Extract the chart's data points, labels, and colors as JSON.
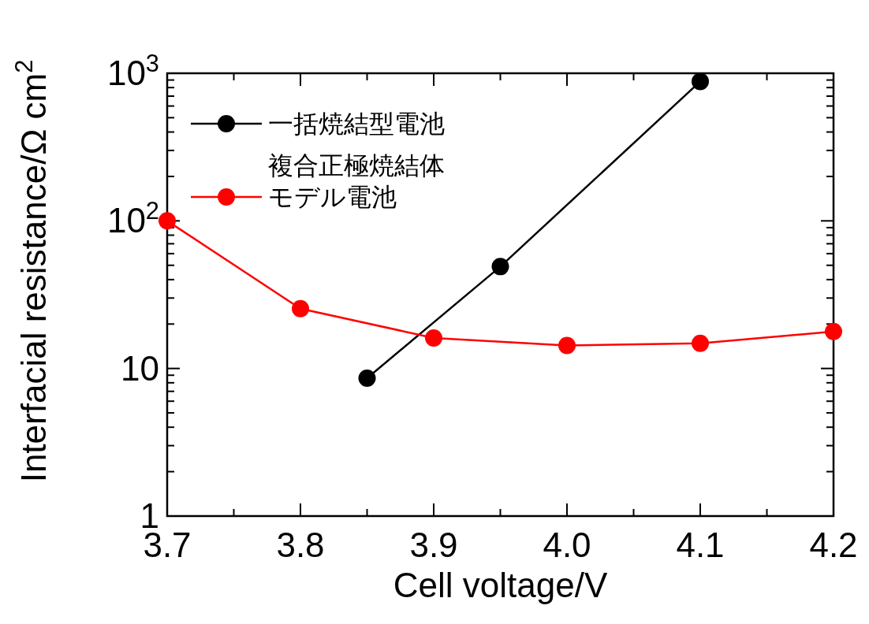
{
  "chart_data": {
    "type": "line",
    "xlabel": "Cell voltage/V",
    "ylabel": "Interfacial resistance/Ω cm$^{2}$",
    "xlim": [
      3.7,
      4.2
    ],
    "xticks": [
      {
        "value": 3.7,
        "label": "3.7"
      },
      {
        "value": 3.8,
        "label": "3.8"
      },
      {
        "value": 3.9,
        "label": "3.9"
      },
      {
        "value": 4.0,
        "label": "4.0"
      },
      {
        "value": 4.1,
        "label": "4.1"
      },
      {
        "value": 4.2,
        "label": "4.2"
      }
    ],
    "ylim": [
      1,
      1000
    ],
    "yticks": [
      1,
      10,
      {
        "value": 100,
        "label": "10$^{2}$"
      },
      {
        "value": 1000,
        "label": "10$^{3}$"
      }
    ],
    "log": "y",
    "marker": "circle",
    "line_style": "solid",
    "grid": false,
    "legend": "top left",
    "series": [
      {
        "name": "一括焼結型電池",
        "color": "#000000",
        "x": [
          3.85,
          3.95,
          4.1
        ],
        "values": [
          8.6,
          49,
          880
        ]
      },
      {
        "name": "複合正極焼結体モデル電池",
        "color": "#ff0000",
        "x": [
          3.7,
          3.8,
          3.9,
          4.0,
          4.1,
          4.2
        ],
        "values": [
          100,
          25.4,
          16.1,
          14.3,
          14.8,
          17.8
        ]
      }
    ]
  }
}
